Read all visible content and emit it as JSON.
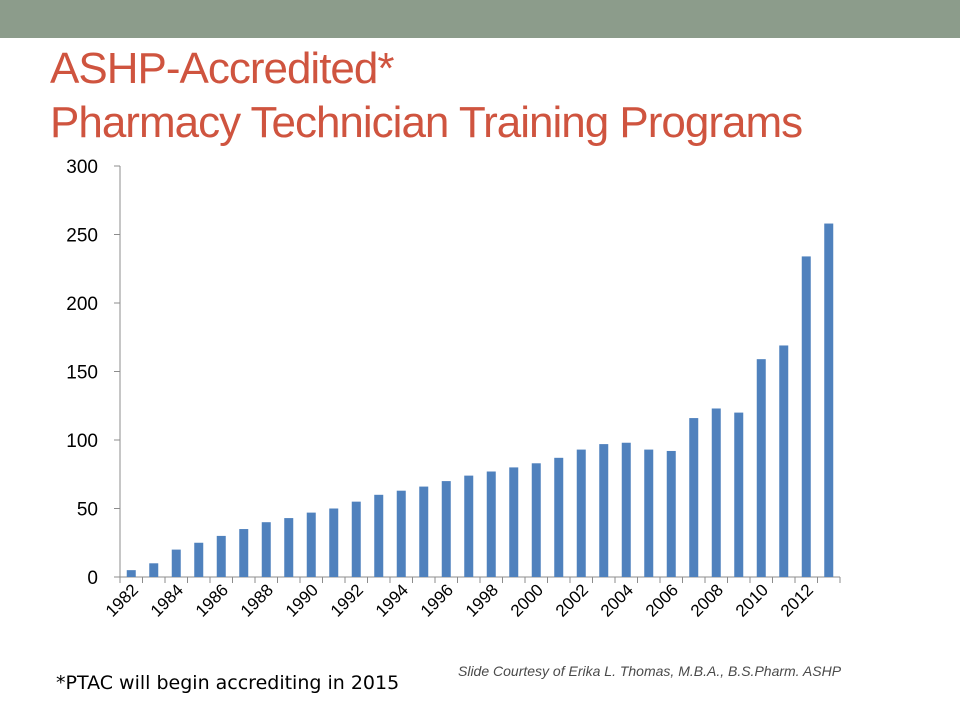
{
  "slide": {
    "title_line1": "ASHP-Accredited*",
    "title_line2": "Pharmacy Technician Training Programs",
    "footnote": "*PTAC will begin accrediting in 2015",
    "credit": "Slide Courtesy of Erika L. Thomas, M.B.A., B.S.Pharm. ASHP",
    "band_color": "#8c9c8b",
    "title_color": "#cf543f"
  },
  "chart_data": {
    "type": "bar",
    "title": "",
    "xlabel": "",
    "ylabel": "",
    "categories": [
      "1982",
      "1983",
      "1984",
      "1985",
      "1986",
      "1987",
      "1988",
      "1989",
      "1990",
      "1991",
      "1992",
      "1993",
      "1994",
      "1995",
      "1996",
      "1997",
      "1998",
      "1999",
      "2000",
      "2001",
      "2002",
      "2003",
      "2004",
      "2005",
      "2006",
      "2007",
      "2008",
      "2009",
      "2010",
      "2011",
      "2012",
      "2013"
    ],
    "tick_labels": [
      "1982",
      "",
      "1984",
      "",
      "1986",
      "",
      "1988",
      "",
      "1990",
      "",
      "1992",
      "",
      "1994",
      "",
      "1996",
      "",
      "1998",
      "",
      "2000",
      "",
      "2002",
      "",
      "2004",
      "",
      "2006",
      "",
      "2008",
      "",
      "2010",
      "",
      "2012",
      ""
    ],
    "values": [
      5,
      10,
      20,
      25,
      30,
      35,
      40,
      43,
      47,
      50,
      55,
      60,
      63,
      66,
      70,
      74,
      77,
      80,
      83,
      87,
      93,
      97,
      98,
      93,
      92,
      116,
      123,
      120,
      159,
      169,
      234,
      258
    ],
    "ylim": [
      0,
      300
    ],
    "yticks": [
      0,
      50,
      100,
      150,
      200,
      250,
      300
    ],
    "grid": false,
    "legend": "none",
    "bar_color": "#4f81bd"
  }
}
